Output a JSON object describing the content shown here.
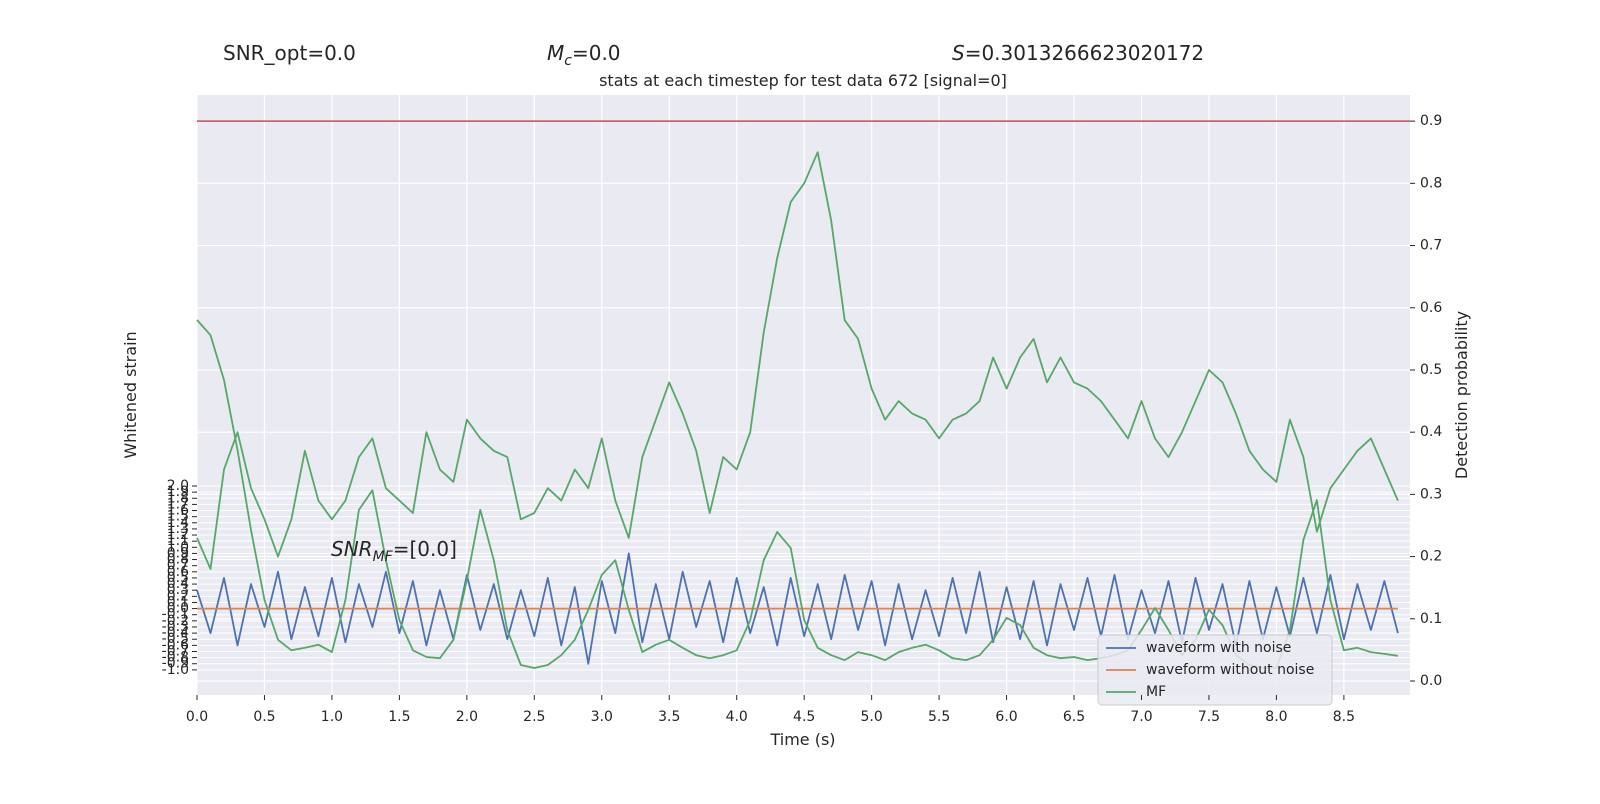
{
  "chart_data": {
    "type": "line",
    "title": "stats at each timestep for test data 672 [signal=0]",
    "header": {
      "snr_opt": "SNR_opt=0.0",
      "mc": {
        "symbol": "M",
        "subscript": "c",
        "value": "=0.0"
      },
      "s": {
        "symbol": "S",
        "value": "=0.3013266623020172"
      }
    },
    "annotation": {
      "symbol": "SNR",
      "subscript": "MF",
      "value": "=[0.0]"
    },
    "xlabel": "Time (s)",
    "ylabel": "Whitened strain",
    "y2label": "Detection probability",
    "x": [
      0.0,
      0.1,
      0.2,
      0.3,
      0.4,
      0.5,
      0.6,
      0.7,
      0.8,
      0.9,
      1.0,
      1.1,
      1.2,
      1.3,
      1.4,
      1.5,
      1.6,
      1.7,
      1.8,
      1.9,
      2.0,
      2.1,
      2.2,
      2.3,
      2.4,
      2.5,
      2.6,
      2.7,
      2.8,
      2.9,
      3.0,
      3.1,
      3.2,
      3.3,
      3.4,
      3.5,
      3.6,
      3.7,
      3.8,
      3.9,
      4.0,
      4.1,
      4.2,
      4.3,
      4.4,
      4.5,
      4.6,
      4.7,
      4.8,
      4.9,
      5.0,
      5.1,
      5.2,
      5.3,
      5.4,
      5.5,
      5.6,
      5.7,
      5.8,
      5.9,
      6.0,
      6.1,
      6.2,
      6.3,
      6.4,
      6.5,
      6.6,
      6.7,
      6.8,
      6.9,
      7.0,
      7.1,
      7.2,
      7.3,
      7.4,
      7.5,
      7.6,
      7.7,
      7.8,
      7.9,
      8.0,
      8.1,
      8.2,
      8.3,
      8.4,
      8.5,
      8.6,
      8.7,
      8.8,
      8.9
    ],
    "series": [
      {
        "name": "waveform with noise",
        "color": "#4c72b0",
        "values": [
          0.3,
          -0.4,
          0.5,
          -0.6,
          0.4,
          -0.3,
          0.6,
          -0.5,
          0.35,
          -0.45,
          0.5,
          -0.55,
          0.4,
          -0.3,
          0.6,
          -0.4,
          0.45,
          -0.6,
          0.3,
          -0.5,
          0.55,
          -0.35,
          0.4,
          -0.5,
          0.3,
          -0.45,
          0.5,
          -0.6,
          0.35,
          -0.9,
          0.45,
          -0.4,
          0.9,
          -0.55,
          0.4,
          -0.5,
          0.6,
          -0.3,
          0.45,
          -0.55,
          0.5,
          -0.4,
          0.35,
          -0.6,
          0.5,
          -0.45,
          0.4,
          -0.5,
          0.55,
          -0.35,
          0.45,
          -0.6,
          0.4,
          -0.5,
          0.3,
          -0.45,
          0.5,
          -0.4,
          0.6,
          -0.55,
          0.35,
          -0.5,
          0.45,
          -0.6,
          0.4,
          -0.35,
          0.5,
          -0.45,
          0.55,
          -0.5,
          0.3,
          -0.4,
          0.45,
          -0.55,
          0.5,
          -0.35,
          0.4,
          -0.6,
          0.45,
          -0.5,
          0.35,
          -0.45,
          0.5,
          -0.4,
          0.55,
          -0.5,
          0.4,
          -0.35,
          0.45,
          -0.4
        ]
      },
      {
        "name": "waveform without noise",
        "color": "#dd8452",
        "values": [
          0,
          0,
          0,
          0,
          0,
          0,
          0,
          0,
          0,
          0,
          0,
          0,
          0,
          0,
          0,
          0,
          0,
          0,
          0,
          0,
          0,
          0,
          0,
          0,
          0,
          0,
          0,
          0,
          0,
          0,
          0,
          0,
          0,
          0,
          0,
          0,
          0,
          0,
          0,
          0,
          0,
          0,
          0,
          0,
          0,
          0,
          0,
          0,
          0,
          0,
          0,
          0,
          0,
          0,
          0,
          0,
          0,
          0,
          0,
          0,
          0,
          0,
          0,
          0,
          0,
          0,
          0,
          0,
          0,
          0,
          0,
          0,
          0,
          0,
          0,
          0,
          0,
          0,
          0,
          0,
          0,
          0,
          0,
          0,
          0,
          0,
          0,
          0,
          0,
          0
        ]
      },
      {
        "name": "MF",
        "color": "#55a868",
        "values": [
          4.71,
          4.46,
          3.73,
          2.59,
          1.28,
          0.14,
          -0.51,
          -0.68,
          -0.64,
          -0.59,
          -0.71,
          0.14,
          1.61,
          1.93,
          0.79,
          -0.19,
          -0.68,
          -0.79,
          -0.81,
          -0.51,
          0.47,
          1.61,
          0.79,
          -0.35,
          -0.92,
          -0.97,
          -0.92,
          -0.76,
          -0.51,
          -0.02,
          0.55,
          0.79,
          -0.02,
          -0.71,
          -0.59,
          -0.51,
          -0.64,
          -0.76,
          -0.81,
          -0.76,
          -0.68,
          -0.19,
          0.79,
          1.25,
          0.99,
          -0.19,
          -0.64,
          -0.76,
          -0.84,
          -0.71,
          -0.76,
          -0.84,
          -0.71,
          -0.64,
          -0.59,
          -0.68,
          -0.81,
          -0.84,
          -0.76,
          -0.51,
          -0.15,
          -0.27,
          -0.64,
          -0.76,
          -0.81,
          -0.79,
          -0.84,
          -0.81,
          -0.76,
          -0.68,
          -0.35,
          0.01,
          -0.35,
          -0.76,
          -0.51,
          -0.02,
          -0.27,
          -0.76,
          -0.92,
          -0.97,
          -0.97,
          -0.35,
          1.12,
          1.77,
          0.14,
          -0.68,
          -0.64,
          -0.71,
          -0.74,
          -0.77
        ]
      },
      {
        "color": "#55a868",
        "axis": "y2",
        "values": [
          0.23,
          0.18,
          0.34,
          0.4,
          0.31,
          0.26,
          0.2,
          0.26,
          0.37,
          0.29,
          0.26,
          0.29,
          0.36,
          0.39,
          0.31,
          0.29,
          0.27,
          0.4,
          0.34,
          0.32,
          0.42,
          0.39,
          0.37,
          0.36,
          0.26,
          0.27,
          0.31,
          0.29,
          0.34,
          0.31,
          0.39,
          0.29,
          0.23,
          0.36,
          0.42,
          0.48,
          0.43,
          0.37,
          0.27,
          0.36,
          0.34,
          0.4,
          0.56,
          0.68,
          0.77,
          0.8,
          0.85,
          0.74,
          0.58,
          0.55,
          0.47,
          0.42,
          0.45,
          0.43,
          0.42,
          0.39,
          0.42,
          0.43,
          0.45,
          0.52,
          0.47,
          0.52,
          0.55,
          0.48,
          0.52,
          0.48,
          0.47,
          0.45,
          0.42,
          0.39,
          0.45,
          0.39,
          0.36,
          0.4,
          0.45,
          0.5,
          0.48,
          0.43,
          0.37,
          0.34,
          0.32,
          0.42,
          0.36,
          0.24,
          0.31,
          0.34,
          0.37,
          0.39,
          0.34,
          0.29
        ]
      }
    ],
    "hlines": [
      {
        "value": 0.9,
        "axis": "y2",
        "color": "#c44e52"
      }
    ],
    "xlim": [
      0,
      8.99
    ],
    "xticks": [
      {
        "value": 0,
        "label": "0.0"
      },
      0.5,
      {
        "value": 1,
        "label": "1.0"
      },
      1.5,
      {
        "value": 2,
        "label": "2.0"
      },
      2.5,
      {
        "value": 3,
        "label": "3.0"
      },
      3.5,
      {
        "value": 4,
        "label": "4.0"
      },
      4.5,
      {
        "value": 5,
        "label": "5.0"
      },
      5.5,
      {
        "value": 6,
        "label": "6.0"
      },
      6.5,
      {
        "value": 7,
        "label": "7.0"
      },
      7.5,
      {
        "value": 8,
        "label": "8.0"
      },
      8.5
    ],
    "ylim": [
      -1.41,
      8.38
    ],
    "yticks": [
      {
        "value": -1,
        "label": "-1.0"
      },
      -0.9,
      -0.8,
      -0.7,
      -0.6,
      -0.5,
      -0.4,
      -0.3,
      -0.2,
      -0.1,
      {
        "value": 0,
        "label": "0.0"
      },
      0.1,
      0.2,
      0.3,
      0.4,
      0.5,
      0.6,
      0.7,
      0.8,
      0.9,
      {
        "value": 1,
        "label": "1.0"
      },
      1.1,
      1.2,
      1.3,
      1.4,
      1.5,
      1.6,
      1.7,
      1.8,
      1.9,
      {
        "value": 2,
        "label": "2.0"
      }
    ],
    "y2lim": [
      -0.0225,
      0.942
    ],
    "y2ticks": [
      {
        "value": 0,
        "label": "0.0"
      },
      0.1,
      0.2,
      0.3,
      0.4,
      0.5,
      0.6,
      0.7,
      0.8,
      0.9
    ],
    "grid": true,
    "legend": "lower right"
  }
}
